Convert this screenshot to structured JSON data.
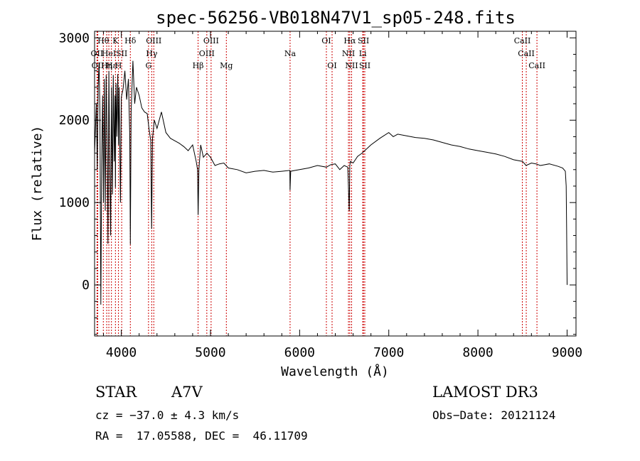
{
  "chart_data": {
    "type": "line",
    "title": "spec-56256-VB018N47V1_sp05-248.fits",
    "xlabel": "Wavelength (Å)",
    "ylabel": "Flux (relative)",
    "xlim": [
      3700,
      9100
    ],
    "ylim": [
      -620,
      3080
    ],
    "xticks": [
      4000,
      5000,
      6000,
      7000,
      8000,
      9000
    ],
    "yticks": [
      0,
      1000,
      2000,
      3000
    ],
    "grid": false,
    "series": [
      {
        "x": [
          3700,
          3720,
          3730,
          3740,
          3750,
          3760,
          3770,
          3780,
          3790,
          3800,
          3810,
          3820,
          3830,
          3840,
          3850,
          3860,
          3870,
          3880,
          3890,
          3900,
          3910,
          3920,
          3930,
          3934,
          3940,
          3950,
          3960,
          3968,
          3975,
          3990,
          4000,
          4020,
          4040,
          4060,
          4080,
          4095,
          4101,
          4110,
          4130,
          4150,
          4170,
          4200,
          4230,
          4260,
          4290,
          4310,
          4330,
          4340,
          4350,
          4370,
          4400,
          4450,
          4500,
          4550,
          4600,
          4650,
          4700,
          4750,
          4800,
          4840,
          4855,
          4861,
          4870,
          4890,
          4920,
          4960,
          5000,
          5050,
          5100,
          5150,
          5200,
          5300,
          5400,
          5500,
          5600,
          5700,
          5800,
          5890,
          5893,
          5900,
          5950,
          6000,
          6100,
          6200,
          6300,
          6350,
          6400,
          6450,
          6500,
          6540,
          6556,
          6563,
          6570,
          6600,
          6650,
          6700,
          6750,
          6800,
          6900,
          7000,
          7050,
          7100,
          7200,
          7300,
          7400,
          7500,
          7600,
          7700,
          7800,
          7900,
          8000,
          8100,
          8200,
          8300,
          8400,
          8500,
          8540,
          8600,
          8650,
          8700,
          8800,
          8900,
          8950,
          8980,
          8990,
          8995,
          9000
        ],
        "values": [
          1600,
          2200,
          1400,
          2400,
          2700,
          2100,
          -240,
          1500,
          2300,
          1000,
          2500,
          900,
          2550,
          1800,
          500,
          2600,
          1500,
          600,
          2400,
          1100,
          2550,
          1500,
          2300,
          1180,
          2450,
          1800,
          2560,
          1700,
          2400,
          1000,
          2280,
          2380,
          2600,
          2250,
          2500,
          1800,
          490,
          2100,
          2720,
          2200,
          2400,
          2300,
          2150,
          2100,
          2080,
          1900,
          1750,
          680,
          1780,
          2000,
          1900,
          2100,
          1850,
          1780,
          1750,
          1720,
          1680,
          1630,
          1700,
          1500,
          1400,
          850,
          1400,
          1700,
          1550,
          1600,
          1550,
          1450,
          1470,
          1480,
          1420,
          1400,
          1360,
          1380,
          1390,
          1370,
          1380,
          1390,
          1150,
          1380,
          1390,
          1400,
          1420,
          1450,
          1430,
          1460,
          1470,
          1400,
          1450,
          1430,
          900,
          1450,
          1500,
          1480,
          1560,
          1600,
          1650,
          1700,
          1780,
          1850,
          1800,
          1830,
          1810,
          1790,
          1780,
          1760,
          1730,
          1700,
          1680,
          1650,
          1630,
          1610,
          1590,
          1560,
          1520,
          1500,
          1450,
          1480,
          1470,
          1450,
          1470,
          1440,
          1420,
          1380,
          1200,
          700,
          0
        ]
      }
    ],
    "lines": [
      {
        "x": 3727,
        "label": "OII",
        "row": 1
      },
      {
        "x": 3736,
        "label": "OII",
        "row": 2
      },
      {
        "x": 3798,
        "label": "Hθ",
        "row": 0
      },
      {
        "x": 3836,
        "label": "Hη",
        "row": 2
      },
      {
        "x": 3860,
        "label": "HeI",
        "row": 1
      },
      {
        "x": 3889,
        "label": "Hε",
        "row": 2
      },
      {
        "x": 3934,
        "label": "K",
        "row": 0
      },
      {
        "x": 3968,
        "label": "H",
        "row": 2
      },
      {
        "x": 4004,
        "label": "SII",
        "row": 1
      },
      {
        "x": 4101,
        "label": "Hδ",
        "row": 0
      },
      {
        "x": 4305,
        "label": "G",
        "row": 2
      },
      {
        "x": 4341,
        "label": "Hγ",
        "row": 1
      },
      {
        "x": 4364,
        "label": "OIII",
        "row": 0
      },
      {
        "x": 4861,
        "label": "Hβ",
        "row": 2
      },
      {
        "x": 4959,
        "label": "OIII",
        "row": 1
      },
      {
        "x": 5007,
        "label": "OIII",
        "row": 0
      },
      {
        "x": 5178,
        "label": "Mg",
        "row": 2
      },
      {
        "x": 5893,
        "label": "Na",
        "row": 1
      },
      {
        "x": 6300,
        "label": "OI",
        "row": 0
      },
      {
        "x": 6364,
        "label": "OI",
        "row": 2
      },
      {
        "x": 6548,
        "label": "NII",
        "row": 1
      },
      {
        "x": 6563,
        "label": "Hα",
        "row": 0
      },
      {
        "x": 6583,
        "label": "NII",
        "row": 2
      },
      {
        "x": 6708,
        "label": "Li",
        "row": 1
      },
      {
        "x": 6716,
        "label": "SII",
        "row": 0
      },
      {
        "x": 6731,
        "label": "SII",
        "row": 2
      },
      {
        "x": 8498,
        "label": "CaII",
        "row": 0
      },
      {
        "x": 8542,
        "label": "CaII",
        "row": 1
      },
      {
        "x": 8662,
        "label": "CaII",
        "row": 2
      }
    ],
    "colors": {
      "spectrum": "#000000",
      "line_markers": "#cc0000",
      "axes": "#000000"
    }
  },
  "footer": {
    "class_label": "STAR",
    "subclass": "A7V",
    "survey": "LAMOST DR3",
    "redshift": "cz = −37.0 ± 4.3 km/s",
    "obs_date": "Obs−Date: 20121124",
    "coords": "RA =  17.05588, DEC =  46.11709"
  }
}
